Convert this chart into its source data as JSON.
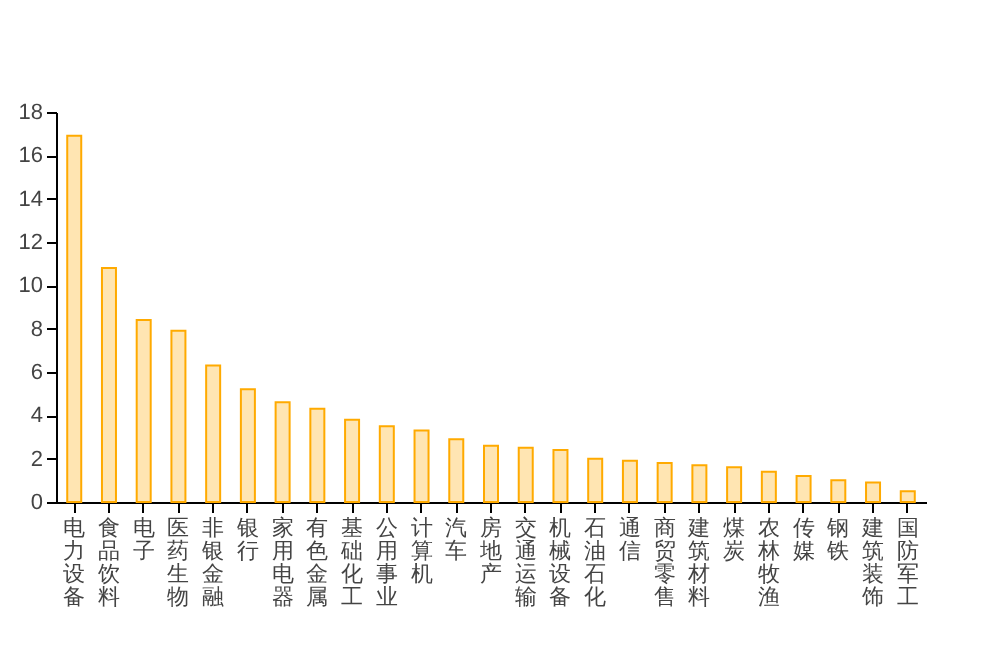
{
  "chart_data": {
    "type": "bar",
    "categories": [
      "电力设备",
      "食品饮料",
      "电子",
      "医药生物",
      "非银金融",
      "银行",
      "家用电器",
      "有色金属",
      "基础化工",
      "公用事业",
      "计算机",
      "汽车",
      "房地产",
      "交通运输",
      "机械设备",
      "石油石化",
      "通信",
      "商贸零售",
      "建筑材料",
      "煤炭",
      "农林牧渔",
      "传媒",
      "钢铁",
      "建筑装饰",
      "国防军工"
    ],
    "values": [
      16.9,
      10.8,
      8.4,
      7.9,
      6.3,
      5.2,
      4.6,
      4.3,
      3.8,
      3.5,
      3.3,
      2.9,
      2.6,
      2.5,
      2.4,
      2.0,
      1.9,
      1.8,
      1.7,
      1.6,
      1.4,
      1.2,
      1.0,
      0.9,
      0.5
    ],
    "color": "#ffaa00",
    "ylim": [
      0,
      18
    ],
    "yticks": [
      0,
      2,
      4,
      6,
      8,
      10,
      12,
      14,
      16,
      18
    ],
    "grid": false
  }
}
